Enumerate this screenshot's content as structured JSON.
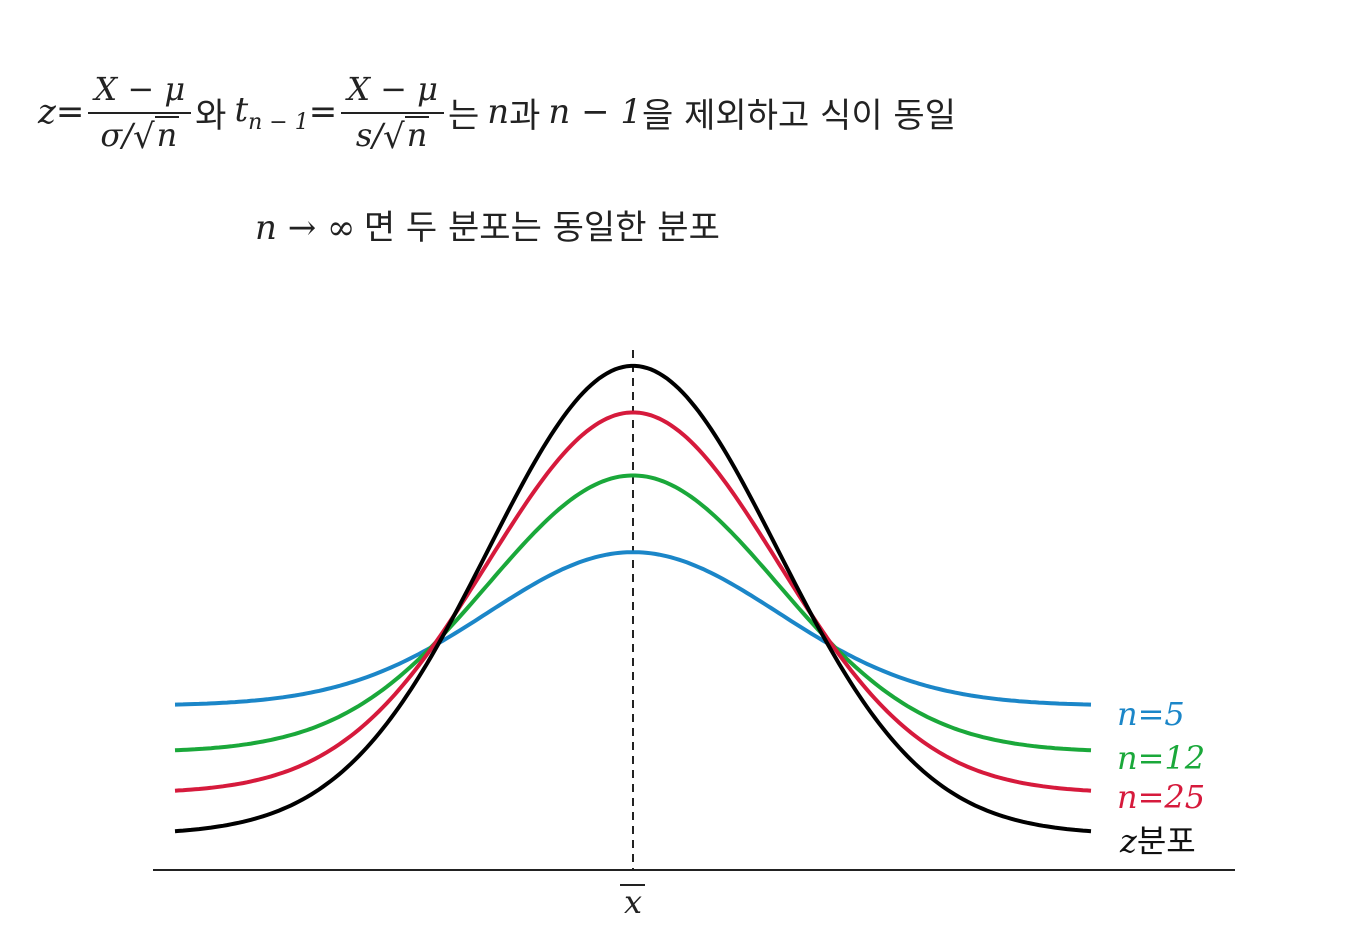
{
  "formula": {
    "z_var": "z",
    "eq": "=",
    "num": "X − μ",
    "den_sigma": "σ/",
    "sqrt_sym": "√",
    "n": "n",
    "wa": "와",
    "t_var": "t",
    "t_sub": "n − 1",
    "den_s": "s/",
    "neun_n": "는",
    "gwa": "과",
    "n_minus_1": "n − 1",
    "tail": "을 제외하고 식이 동일"
  },
  "limit_line": {
    "expr": "n → ∞",
    "text": "면 두 분포는 동일한 분포"
  },
  "diagram": {
    "axis_label": "x",
    "legend": [
      {
        "label": "n=5",
        "color": "#1b86c8"
      },
      {
        "label": "n=12",
        "color": "#1aa83a"
      },
      {
        "label": "n=25",
        "color": "#d61a3c"
      }
    ],
    "z_label_var": "z",
    "z_label_text": "분포",
    "z_color": "#000000"
  }
}
